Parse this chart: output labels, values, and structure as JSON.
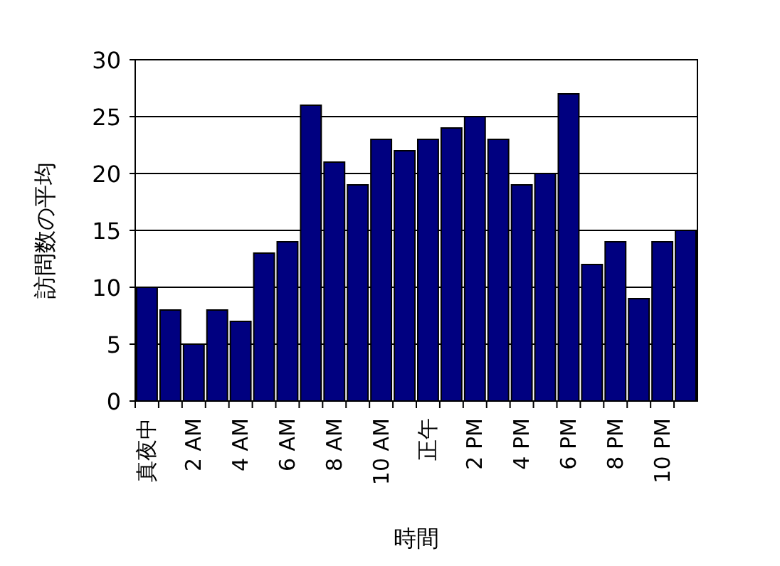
{
  "chart_data": {
    "type": "bar",
    "xlabel": "時間",
    "ylabel": "訪問数の平均",
    "categories": [
      "真夜中",
      null,
      "2 AM",
      null,
      "4 AM",
      null,
      "6 AM",
      null,
      "8 AM",
      null,
      "10 AM",
      null,
      "正午",
      null,
      "2 PM",
      null,
      "4 PM",
      null,
      "6 PM",
      null,
      "8 PM",
      null,
      "10 PM",
      null
    ],
    "values": [
      10,
      8,
      5,
      8,
      7,
      13,
      14,
      26,
      21,
      19,
      23,
      22,
      23,
      24,
      25,
      23,
      19,
      20,
      27,
      12,
      14,
      9,
      14,
      15
    ],
    "color": "#000080",
    "ylim": [
      0,
      30
    ],
    "yticks": [
      0,
      5,
      10,
      15,
      20,
      25,
      30
    ],
    "grid": "y"
  }
}
